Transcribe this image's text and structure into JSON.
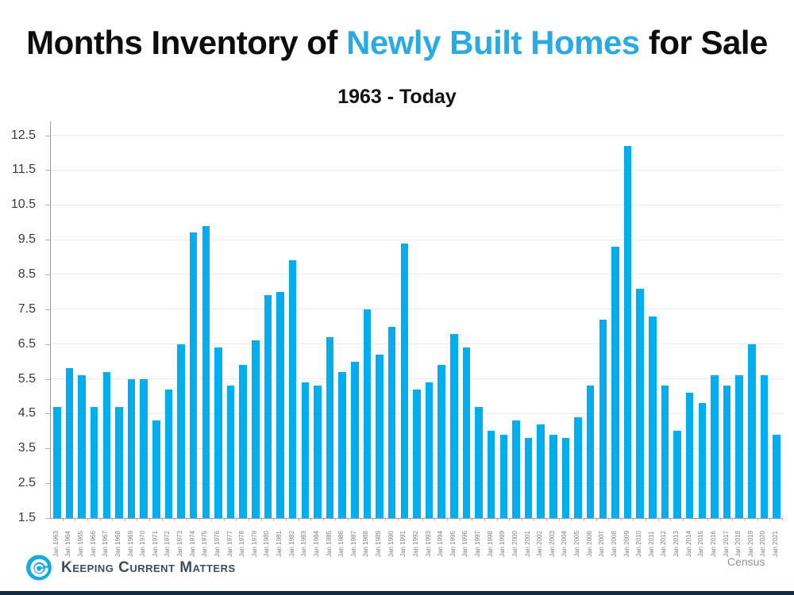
{
  "page": {
    "title_prefix": "Months Inventory of ",
    "title_highlight": "Newly Built Homes",
    "title_suffix": " for Sale",
    "subtitle": "1963 - Today",
    "source_label": "Census",
    "footer_brand": "Keeping Current Matters"
  },
  "colors": {
    "bar": "#00AEEF",
    "title_highlight": "#29ABE2",
    "logo_blue": "#1BA9E1",
    "brand_navy": "#16283C",
    "gridline": "#e9e9e9",
    "axis": "#9a9a9a"
  },
  "chart_data": {
    "type": "bar",
    "title": "Months Inventory of Newly Built Homes for Sale",
    "subtitle": "1963 - Today",
    "categories": [
      "Jan 1963",
      "Jan 1964",
      "Jan 1965",
      "Jan 1966",
      "Jan 1967",
      "Jan 1968",
      "Jan 1969",
      "Jan 1970",
      "Jan 1971",
      "Jan 1972",
      "Jan 1973",
      "Jan 1974",
      "Jan 1975",
      "Jan 1976",
      "Jan 1977",
      "Jan 1978",
      "Jan 1979",
      "Jan 1980",
      "Jan 1981",
      "Jan 1982",
      "Jan 1983",
      "Jan 1984",
      "Jan 1985",
      "Jan 1986",
      "Jan 1987",
      "Jan 1988",
      "Jan 1989",
      "Jan 1990",
      "Jan 1991",
      "Jan 1992",
      "Jan 1993",
      "Jan 1994",
      "Jan 1995",
      "Jan 1996",
      "Jan 1997",
      "Jan 1998",
      "Jan 1999",
      "Jan 2000",
      "Jan 2001",
      "Jan 2002",
      "Jan 2003",
      "Jan 2004",
      "Jan 2005",
      "Jan 2006",
      "Jan 2007",
      "Jan 2008",
      "Jan 2009",
      "Jan 2010",
      "Jan 2011",
      "Jan 2012",
      "Jan 2013",
      "Jan 2014",
      "Jan 2015",
      "Jan 2016",
      "Jan 2017",
      "Jan 2018",
      "Jan 2019",
      "Jan 2020",
      "Jan 2021"
    ],
    "values": [
      4.7,
      5.8,
      5.6,
      4.7,
      5.7,
      4.7,
      5.5,
      5.5,
      4.3,
      5.2,
      6.5,
      9.7,
      9.9,
      6.4,
      5.3,
      5.9,
      6.6,
      7.9,
      8.0,
      8.9,
      5.4,
      5.3,
      6.7,
      5.7,
      6.0,
      7.5,
      6.2,
      7.0,
      9.4,
      5.2,
      5.4,
      5.9,
      6.8,
      6.4,
      4.7,
      4.0,
      3.9,
      4.3,
      3.8,
      4.2,
      3.9,
      3.8,
      4.4,
      5.3,
      7.2,
      9.3,
      12.2,
      8.1,
      7.3,
      5.3,
      4.0,
      5.1,
      4.8,
      5.6,
      5.3,
      5.6,
      6.5,
      5.6,
      3.9
    ],
    "xlabel": "",
    "ylabel": "",
    "ylim": [
      1.5,
      12.9
    ],
    "y_ticks": [
      1.5,
      2.5,
      3.5,
      4.5,
      5.5,
      6.5,
      7.5,
      8.5,
      9.5,
      10.5,
      11.5,
      12.5
    ],
    "grid": true,
    "legend": false,
    "source": "Census"
  }
}
